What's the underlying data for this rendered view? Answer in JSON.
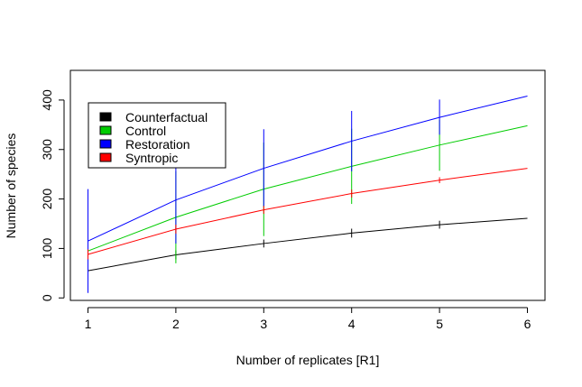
{
  "chart_data": {
    "type": "line",
    "title": "",
    "xlabel": "Number of replicates [R1]",
    "ylabel": "Number of species",
    "x": [
      1,
      2,
      3,
      4,
      5,
      6
    ],
    "xlim": [
      0.8,
      6.2
    ],
    "ylim": [
      -5,
      460
    ],
    "xticks": [
      1,
      2,
      3,
      4,
      5,
      6
    ],
    "yticks": [
      0,
      100,
      200,
      300,
      400
    ],
    "legend_position": "top-left",
    "grid": false,
    "error_bars": true,
    "series": [
      {
        "name": "Counterfactual",
        "color": "#000000",
        "values": [
          55,
          87,
          110,
          131,
          148,
          161
        ],
        "err_low": [
          55,
          78,
          102,
          122,
          140,
          161
        ],
        "err_high": [
          55,
          96,
          118,
          140,
          156,
          161
        ]
      },
      {
        "name": "Control",
        "color": "#00cc00",
        "values": [
          95,
          163,
          220,
          266,
          309,
          348
        ],
        "err_low": [
          95,
          70,
          125,
          190,
          257,
          348
        ],
        "err_high": [
          95,
          256,
          314,
          342,
          360,
          348
        ]
      },
      {
        "name": "Restoration",
        "color": "#0000ff",
        "values": [
          115,
          198,
          262,
          317,
          365,
          408
        ],
        "err_low": [
          10,
          110,
          185,
          256,
          330,
          408
        ],
        "err_high": [
          220,
          286,
          341,
          378,
          401,
          408
        ]
      },
      {
        "name": "Syntropic",
        "color": "#ff0000",
        "values": [
          88,
          139,
          178,
          211,
          238,
          262
        ],
        "err_low": [
          78,
          130,
          170,
          203,
          232,
          262
        ],
        "err_high": [
          98,
          148,
          186,
          219,
          244,
          262
        ]
      }
    ]
  }
}
